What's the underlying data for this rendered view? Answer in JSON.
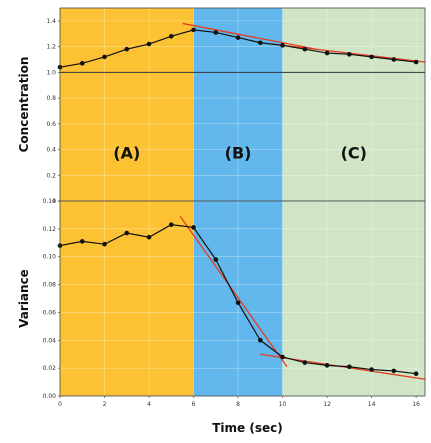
{
  "chart_data": [
    {
      "type": "line",
      "panel": "top",
      "xlabel": "",
      "ylabel": "Concentration",
      "xlim": [
        0,
        16.4
      ],
      "ylim": [
        0,
        1.5
      ],
      "yticks": [
        "0",
        "0.2",
        "0.4",
        "0.6",
        "0.8",
        "1.0",
        "1.2",
        "1.4"
      ],
      "grid": true,
      "regions": [
        {
          "label": "(A)",
          "x0": 0,
          "x1": 6,
          "color": "#fcc233"
        },
        {
          "label": "(B)",
          "x0": 6,
          "x1": 10,
          "color": "#62b8ec"
        },
        {
          "label": "(C)",
          "x0": 10,
          "x1": 16.4,
          "color": "#cfe5c6"
        }
      ],
      "series": [
        {
          "color": "#111111",
          "x": [
            0,
            1,
            2,
            3,
            4,
            5,
            6,
            7,
            8,
            9,
            10,
            11,
            12,
            13,
            14,
            15,
            16
          ],
          "y": [
            1.04,
            1.07,
            1.12,
            1.18,
            1.22,
            1.28,
            1.33,
            1.31,
            1.27,
            1.23,
            1.21,
            1.18,
            1.15,
            1.14,
            1.12,
            1.1,
            1.08
          ]
        }
      ],
      "fit_lines": [
        {
          "color": "#e53b1f",
          "x": [
            5.5,
            11.5
          ],
          "y": [
            1.38,
            1.18
          ]
        },
        {
          "color": "#e53b1f",
          "x": [
            9.5,
            16.4
          ],
          "y": [
            1.22,
            1.08
          ]
        }
      ],
      "hlines": [
        1.0
      ]
    },
    {
      "type": "line",
      "panel": "bottom",
      "xlabel": "Time (sec)",
      "ylabel": "Variance",
      "xlim": [
        0,
        16.4
      ],
      "ylim": [
        0,
        0.14
      ],
      "xticks": [
        "0",
        "2",
        "4",
        "6",
        "8",
        "10",
        "12",
        "14",
        "16"
      ],
      "yticks": [
        "0.00",
        "0.02",
        "0.04",
        "0.06",
        "0.08",
        "0.10",
        "0.12",
        "0.14"
      ],
      "grid": true,
      "regions": [
        {
          "x0": 0,
          "x1": 6,
          "color": "#fcc233"
        },
        {
          "x0": 6,
          "x1": 10,
          "color": "#62b8ec"
        },
        {
          "x0": 10,
          "x1": 16.4,
          "color": "#cfe5c6"
        }
      ],
      "series": [
        {
          "color": "#111111",
          "x": [
            0,
            1,
            2,
            3,
            4,
            5,
            6,
            7,
            8,
            9,
            10,
            11,
            12,
            13,
            14,
            15,
            16
          ],
          "y": [
            0.108,
            0.111,
            0.109,
            0.117,
            0.114,
            0.123,
            0.121,
            0.098,
            0.067,
            0.04,
            0.028,
            0.024,
            0.022,
            0.021,
            0.019,
            0.018,
            0.016
          ]
        }
      ],
      "fit_lines": [
        {
          "color": "#e53b1f",
          "x": [
            5.4,
            10.2
          ],
          "y": [
            0.129,
            0.021
          ]
        },
        {
          "color": "#e53b1f",
          "x": [
            9,
            16.4
          ],
          "y": [
            0.03,
            0.012
          ]
        }
      ]
    }
  ]
}
